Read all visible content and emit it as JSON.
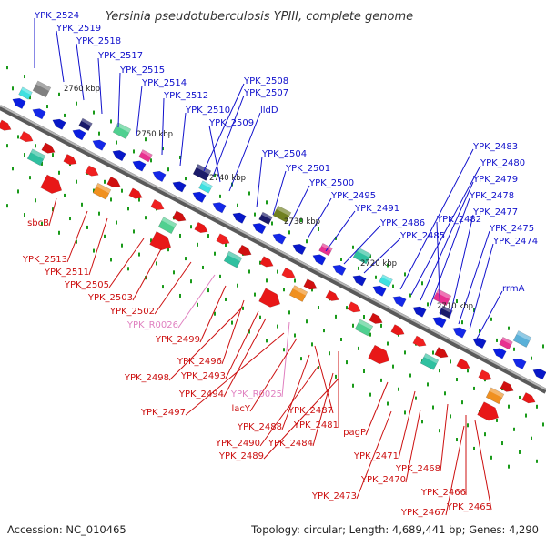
{
  "title": "Yersinia pseudotuberculosis YPIII, complete genome",
  "footer": {
    "accession": "Accession: NC_010465",
    "topology": "Topology: circular; Length: 4,689,441 bp; Genes: 4,290"
  },
  "colors": {
    "forward_label": "#1010cc",
    "reverse_label": "#cc1010",
    "rna_label": "#e080c0",
    "backbone": "#808080",
    "tick": "#1a9a1a"
  },
  "kbp_markers": [
    "2760 kbp",
    "2750 kbp",
    "2740 kbp",
    "2730 kbp",
    "2720 kbp",
    "2710 kbp"
  ],
  "labels_top": [
    "YPK_2524",
    "YPK_2519",
    "YPK_2518",
    "YPK_2517",
    "YPK_2515",
    "YPK_2514",
    "YPK_2512",
    "YPK_2510",
    "YPK_2508",
    "YPK_2507",
    "YPK_2509",
    "lldD",
    "YPK_2504",
    "YPK_2501",
    "YPK_2500",
    "YPK_2495",
    "YPK_2491",
    "YPK_2486",
    "YPK_2485",
    "YPK_2483",
    "YPK_2480",
    "YPK_2479",
    "YPK_2478",
    "YPK_2482",
    "YPK_2477",
    "YPK_2475",
    "YPK_2474",
    "rrmA"
  ],
  "labels_bottom": [
    "sbcB",
    "YPK_2513",
    "YPK_2511",
    "YPK_2505",
    "YPK_2503",
    "YPK_2502",
    "YPK_R0026",
    "YPK_2499",
    "YPK_2496",
    "YPK_2498",
    "YPK_2493",
    "YPK_2494",
    "YPK_R0025",
    "YPK_2497",
    "lacY",
    "YPK_2487",
    "YPK_2488",
    "YPK_2481",
    "YPK_2490",
    "YPK_2484",
    "YPK_2489",
    "pagP",
    "YPK_2471",
    "YPK_2468",
    "YPK_2470",
    "YPK_2473",
    "YPK_2466",
    "YPK_2465",
    "YPK_2467"
  ]
}
